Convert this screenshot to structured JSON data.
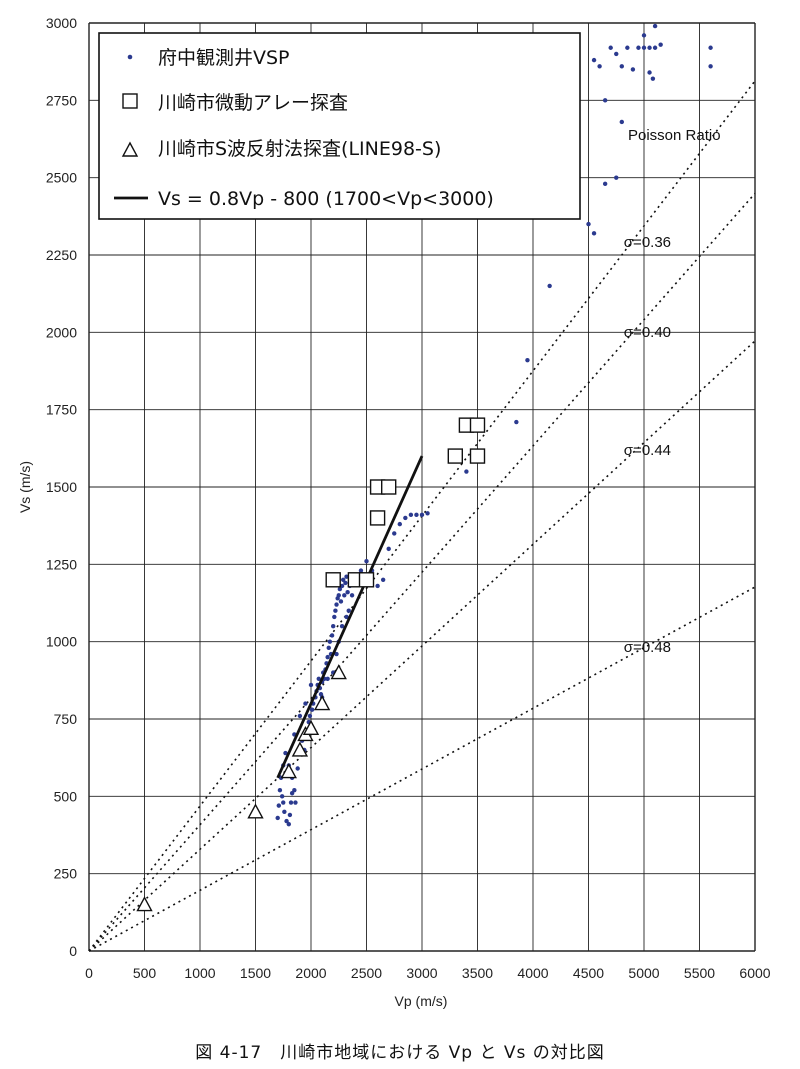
{
  "caption": "図 4-17　川崎市地域における Vp と Vs の対比図",
  "chart_data": {
    "type": "scatter",
    "xlabel": "Vp (m/s)",
    "ylabel": "Vs (m/s)",
    "xlim": [
      0,
      6000
    ],
    "ylim": [
      0,
      3000
    ],
    "xticks": [
      "0",
      "500",
      "1000",
      "1500",
      "2000",
      "2500",
      "3000",
      "3500",
      "4000",
      "4500",
      "5000",
      "5500",
      "6000"
    ],
    "yticks": [
      "0",
      "250",
      "500",
      "750",
      "1000",
      "1250",
      "1500",
      "1750",
      "2000",
      "2250",
      "2500",
      "2750",
      "3000"
    ],
    "grid": true,
    "legend_position": "top-left",
    "poisson_title": "Poisson Ratio",
    "colors": {
      "vsp": "#2b3a8f",
      "ink": "#111111",
      "grid": "#222222"
    },
    "series": [
      {
        "name": "府中観測井VSP",
        "marker": "dot",
        "points": [
          [
            1700,
            430
          ],
          [
            1710,
            470
          ],
          [
            1720,
            520
          ],
          [
            1730,
            560
          ],
          [
            1740,
            500
          ],
          [
            1750,
            480
          ],
          [
            1760,
            450
          ],
          [
            1780,
            420
          ],
          [
            1800,
            410
          ],
          [
            1810,
            440
          ],
          [
            1820,
            480
          ],
          [
            1830,
            510
          ],
          [
            1750,
            600
          ],
          [
            1770,
            640
          ],
          [
            1800,
            600
          ],
          [
            1830,
            560
          ],
          [
            1850,
            520
          ],
          [
            1860,
            480
          ],
          [
            1880,
            590
          ],
          [
            1900,
            640
          ],
          [
            1920,
            680
          ],
          [
            1940,
            650
          ],
          [
            1960,
            700
          ],
          [
            1980,
            740
          ],
          [
            1990,
            760
          ],
          [
            2000,
            720
          ],
          [
            2010,
            780
          ],
          [
            2020,
            800
          ],
          [
            2040,
            820
          ],
          [
            2050,
            840
          ],
          [
            2060,
            860
          ],
          [
            2070,
            880
          ],
          [
            2080,
            850
          ],
          [
            2090,
            830
          ],
          [
            2100,
            870
          ],
          [
            2110,
            900
          ],
          [
            2120,
            880
          ],
          [
            2130,
            910
          ],
          [
            2140,
            930
          ],
          [
            2150,
            950
          ],
          [
            2160,
            980
          ],
          [
            2170,
            1000
          ],
          [
            2180,
            960
          ],
          [
            2190,
            1020
          ],
          [
            2200,
            1050
          ],
          [
            2210,
            1080
          ],
          [
            2220,
            1100
          ],
          [
            2230,
            1120
          ],
          [
            2240,
            1140
          ],
          [
            2250,
            1150
          ],
          [
            2260,
            1170
          ],
          [
            2270,
            1130
          ],
          [
            2280,
            1180
          ],
          [
            2290,
            1200
          ],
          [
            2300,
            1150
          ],
          [
            2310,
            1190
          ],
          [
            2320,
            1210
          ],
          [
            2330,
            1160
          ],
          [
            2340,
            1100
          ],
          [
            2350,
            1180
          ],
          [
            2370,
            1150
          ],
          [
            2400,
            1200
          ],
          [
            2450,
            1230
          ],
          [
            2500,
            1260
          ],
          [
            2550,
            1230
          ],
          [
            2600,
            1180
          ],
          [
            2650,
            1200
          ],
          [
            2700,
            1300
          ],
          [
            2750,
            1350
          ],
          [
            2800,
            1380
          ],
          [
            2850,
            1400
          ],
          [
            2900,
            1410
          ],
          [
            2950,
            1410
          ],
          [
            3000,
            1410
          ],
          [
            3050,
            1415
          ],
          [
            2200,
            900
          ],
          [
            2150,
            880
          ],
          [
            2250,
            1000
          ],
          [
            2000,
            860
          ],
          [
            1950,
            800
          ],
          [
            1900,
            760
          ],
          [
            1850,
            700
          ],
          [
            2100,
            820
          ],
          [
            2230,
            960
          ],
          [
            2280,
            1050
          ],
          [
            2320,
            1080
          ],
          [
            3400,
            1550
          ],
          [
            3850,
            1710
          ],
          [
            3950,
            1910
          ],
          [
            4150,
            2150
          ],
          [
            4500,
            2350
          ],
          [
            4550,
            2320
          ],
          [
            4650,
            2480
          ],
          [
            4750,
            2500
          ],
          [
            4800,
            2680
          ],
          [
            4550,
            2880
          ],
          [
            4600,
            2860
          ],
          [
            4700,
            2920
          ],
          [
            4750,
            2900
          ],
          [
            4800,
            2860
          ],
          [
            4850,
            2920
          ],
          [
            4900,
            2850
          ],
          [
            4950,
            2920
          ],
          [
            5000,
            2920
          ],
          [
            5000,
            2960
          ],
          [
            5050,
            2920
          ],
          [
            5100,
            2920
          ],
          [
            5050,
            2840
          ],
          [
            5080,
            2820
          ],
          [
            5100,
            2990
          ],
          [
            5150,
            2930
          ],
          [
            5600,
            2920
          ],
          [
            5600,
            2860
          ],
          [
            4650,
            2750
          ]
        ]
      },
      {
        "name": "川崎市微動アレー探査",
        "marker": "square",
        "points": [
          [
            2200,
            1200
          ],
          [
            2400,
            1200
          ],
          [
            2500,
            1200
          ],
          [
            2600,
            1400
          ],
          [
            2600,
            1500
          ],
          [
            2700,
            1500
          ],
          [
            3300,
            1600
          ],
          [
            3500,
            1600
          ],
          [
            3400,
            1700
          ],
          [
            3500,
            1700
          ]
        ]
      },
      {
        "name": "川崎市S波反射法探査(LINE98-S)",
        "marker": "triangle",
        "points": [
          [
            500,
            150
          ],
          [
            1500,
            450
          ],
          [
            1800,
            580
          ],
          [
            1900,
            650
          ],
          [
            1950,
            700
          ],
          [
            2000,
            720
          ],
          [
            2100,
            800
          ],
          [
            2250,
            900
          ]
        ]
      },
      {
        "name": "Vs = 0.8Vp - 800 (1700<Vp<3000)",
        "marker": "line",
        "points": [
          [
            1700,
            560
          ],
          [
            3000,
            1600
          ]
        ]
      }
    ],
    "poisson_lines": [
      {
        "label": "σ=0.36",
        "ratio": 0.4688
      },
      {
        "label": "σ=0.40",
        "ratio": 0.4082
      },
      {
        "label": "σ=0.44",
        "ratio": 0.3287
      },
      {
        "label": "σ=0.48",
        "ratio": 0.1961
      }
    ]
  }
}
